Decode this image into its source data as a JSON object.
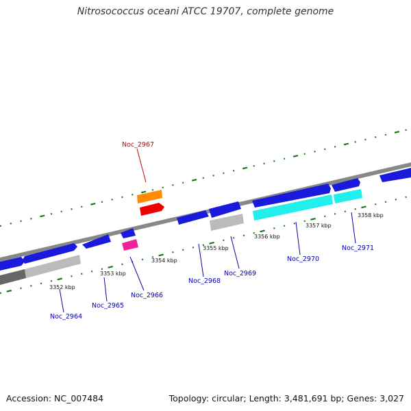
{
  "title": "Nitrosococcus oceani ATCC 19707, complete genome",
  "footer": {
    "accession": "Accession: NC_007484",
    "topology": "Topology: circular; Length: 3,481,691 bp; Genes: 3,027"
  },
  "scale_labels": [
    "3352 kbp",
    "3353 kbp",
    "3354 kbp",
    "3355 kbp",
    "3356 kbp",
    "3357 kbp",
    "3358 kbp"
  ],
  "gene_labels": [
    {
      "name": "Noc_2967",
      "color": "#cc0000"
    },
    {
      "name": "Noc_2964",
      "color": "#0000aa"
    },
    {
      "name": "Noc_2965",
      "color": "#0000aa"
    },
    {
      "name": "Noc_2966",
      "color": "#0000aa"
    },
    {
      "name": "Noc_2968",
      "color": "#0000aa"
    },
    {
      "name": "Noc_2969",
      "color": "#0000aa"
    },
    {
      "name": "Noc_2970",
      "color": "#0000aa"
    },
    {
      "name": "Noc_2971",
      "color": "#0000aa"
    }
  ],
  "colors": {
    "cds_blue": "#1a1add",
    "rna_orange": "#ff8c00",
    "rna_red": "#ee0000",
    "pink": "#ee2299",
    "cyan": "#22eeee",
    "gray": "#bbbbbb",
    "dark_gray": "#666666",
    "backbone": "#888888",
    "ticks": "#1a7a1a"
  }
}
